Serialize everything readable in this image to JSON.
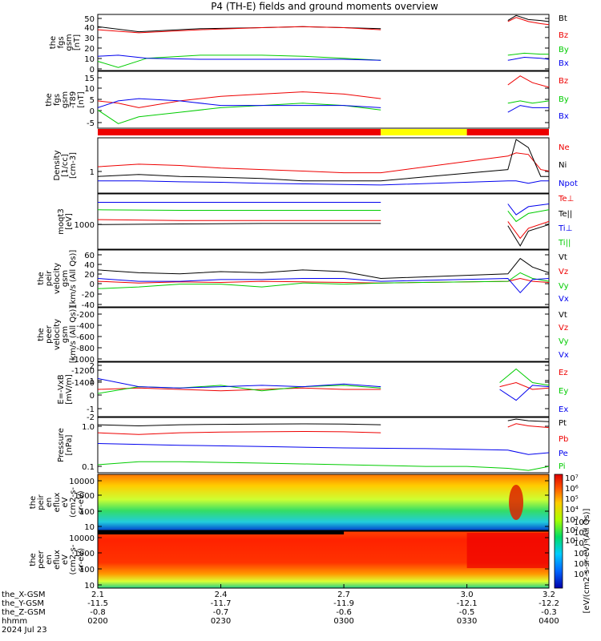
{
  "title": "P4 (TH-E) fields and ground moments overview",
  "colors": {
    "black": "#000000",
    "red": "#ee0000",
    "green": "#00cc00",
    "blue": "#0000ee",
    "yellow": "#ffff00"
  },
  "chart_data": [
    {
      "type": "line",
      "panel": "fgs_gsm",
      "ylabel": [
        "the",
        "fgs",
        "gsm",
        "[nT]"
      ],
      "ylim": [
        -5,
        50
      ],
      "yticks": [
        "50",
        "40",
        "30",
        "20",
        "10",
        "0"
      ],
      "legend": [
        "Bt",
        "Bz",
        "By",
        "Bx"
      ],
      "gap": [
        2.79,
        3.1
      ],
      "series": [
        {
          "name": "Bt",
          "color": "#000000",
          "x": [
            2.1,
            2.2,
            2.35,
            2.5,
            2.6,
            2.7,
            2.79,
            3.1,
            3.12,
            3.15,
            3.18,
            3.2
          ],
          "values": [
            38,
            33,
            36,
            37,
            38,
            37,
            36,
            44,
            49,
            45,
            44,
            43
          ]
        },
        {
          "name": "Bz",
          "color": "#ee0000",
          "x": [
            2.1,
            2.2,
            2.35,
            2.5,
            2.6,
            2.7,
            2.79,
            3.1,
            3.12,
            3.15,
            3.18,
            3.2
          ],
          "values": [
            35,
            32,
            35,
            37,
            38,
            37,
            35,
            43,
            47,
            43,
            41,
            40
          ]
        },
        {
          "name": "By",
          "color": "#00cc00",
          "x": [
            2.1,
            2.15,
            2.22,
            2.35,
            2.5,
            2.6,
            2.7,
            2.79,
            3.1,
            3.14,
            3.18,
            3.2
          ],
          "values": [
            4,
            -2,
            7,
            10,
            10,
            9,
            7,
            5,
            10,
            12,
            11,
            11
          ]
        },
        {
          "name": "Bx",
          "color": "#0000ee",
          "x": [
            2.1,
            2.15,
            2.22,
            2.35,
            2.5,
            2.6,
            2.7,
            2.79,
            3.1,
            3.14,
            3.18,
            3.2
          ],
          "values": [
            9,
            10,
            7,
            6,
            6,
            6,
            6,
            5,
            5,
            8,
            7,
            6
          ]
        }
      ]
    },
    {
      "type": "line",
      "panel": "fgs_gsm_t89",
      "ylabel": [
        "the",
        "fgs",
        "gsm",
        "-T89",
        "[nT]"
      ],
      "ylim": [
        -8,
        17
      ],
      "yticks": [
        "15",
        "10",
        "5",
        "0",
        "-5"
      ],
      "legend": [
        "Bz",
        "By",
        "Bx"
      ],
      "gap": [
        2.79,
        3.1
      ],
      "series": [
        {
          "name": "Bz",
          "color": "#ee0000",
          "x": [
            2.1,
            2.15,
            2.2,
            2.3,
            2.4,
            2.5,
            2.6,
            2.7,
            2.79,
            3.1,
            3.13,
            3.16,
            3.2
          ],
          "values": [
            4,
            3,
            1,
            4,
            6,
            7,
            8,
            7,
            5,
            11,
            15,
            12,
            10
          ]
        },
        {
          "name": "By",
          "color": "#00cc00",
          "x": [
            2.1,
            2.15,
            2.2,
            2.3,
            2.4,
            2.5,
            2.6,
            2.7,
            2.79,
            3.1,
            3.13,
            3.16,
            3.2
          ],
          "values": [
            0,
            -6,
            -3,
            -1,
            1,
            2,
            3,
            2,
            0,
            3,
            4,
            3,
            4
          ]
        },
        {
          "name": "Bx",
          "color": "#0000ee",
          "x": [
            2.1,
            2.15,
            2.2,
            2.3,
            2.4,
            2.5,
            2.6,
            2.7,
            2.79,
            3.1,
            3.13,
            3.16,
            3.2
          ],
          "values": [
            1,
            4,
            5,
            4,
            2,
            2,
            2,
            2,
            1,
            -1,
            2,
            1,
            1
          ]
        }
      ]
    },
    {
      "type": "bar",
      "panel": "mode_bar",
      "segments": [
        {
          "from": 2.1,
          "to": 2.79,
          "color": "#ee0000"
        },
        {
          "from": 2.79,
          "to": 3.0,
          "color": "#ffff00"
        },
        {
          "from": 3.0,
          "to": 3.2,
          "color": "#ee0000"
        }
      ]
    },
    {
      "type": "line",
      "panel": "density",
      "log": true,
      "ylabel": [
        "Density",
        "[1/cc]",
        "[cm-3]"
      ],
      "ylim": [
        0.3,
        3
      ],
      "yticks": [
        "1"
      ],
      "legend": [
        "Ne",
        "Ni",
        "Npot"
      ],
      "series": [
        {
          "name": "Ne",
          "color": "#ee0000",
          "x": [
            2.1,
            2.2,
            2.3,
            2.4,
            2.5,
            2.6,
            2.7,
            2.79,
            3.1,
            3.12,
            3.15,
            3.18,
            3.2
          ],
          "values": [
            0.9,
            1.0,
            0.95,
            0.85,
            0.8,
            0.75,
            0.7,
            0.7,
            1.4,
            1.6,
            1.5,
            0.8,
            0.75
          ]
        },
        {
          "name": "Ni",
          "color": "#000000",
          "x": [
            2.1,
            2.2,
            2.3,
            2.4,
            2.5,
            2.6,
            2.7,
            2.79,
            3.1,
            3.12,
            3.15,
            3.18,
            3.2
          ],
          "values": [
            0.6,
            0.65,
            0.6,
            0.58,
            0.55,
            0.5,
            0.5,
            0.5,
            0.8,
            2.8,
            2.0,
            0.6,
            0.6
          ]
        },
        {
          "name": "Npot",
          "color": "#0000ee",
          "x": [
            2.1,
            2.2,
            2.3,
            2.4,
            2.5,
            2.6,
            2.7,
            2.79,
            3.1,
            3.12,
            3.15,
            3.18,
            3.2
          ],
          "values": [
            0.5,
            0.5,
            0.48,
            0.47,
            0.45,
            0.44,
            0.43,
            0.42,
            0.5,
            0.5,
            0.45,
            0.5,
            0.5
          ]
        }
      ]
    },
    {
      "type": "line",
      "panel": "temperature",
      "log": true,
      "ylabel": [
        "moqt3",
        "[eV]"
      ],
      "ylim": [
        300,
        4000
      ],
      "yticks": [
        "1000"
      ],
      "legend": [
        "Te⊥",
        "Te||",
        "Ti⊥",
        "Ti||"
      ],
      "gap": [
        2.79,
        3.1
      ],
      "series": [
        {
          "name": "Te⊥",
          "color": "#ee0000",
          "x": [
            2.1,
            2.3,
            2.5,
            2.79,
            3.1,
            3.13,
            3.15,
            3.2
          ],
          "values": [
            1200,
            1150,
            1150,
            1150,
            1100,
            500,
            800,
            1100
          ]
        },
        {
          "name": "Te||",
          "color": "#000000",
          "x": [
            2.1,
            2.3,
            2.5,
            2.79,
            3.1,
            3.13,
            3.15,
            3.2
          ],
          "values": [
            950,
            980,
            1000,
            1000,
            900,
            350,
            700,
            950
          ]
        },
        {
          "name": "Ti⊥",
          "color": "#0000ee",
          "x": [
            2.1,
            2.3,
            2.5,
            2.79,
            3.1,
            3.12,
            3.15,
            3.2
          ],
          "values": [
            2700,
            2700,
            2700,
            2700,
            2500,
            1500,
            2200,
            2500
          ]
        },
        {
          "name": "Ti||",
          "color": "#00cc00",
          "x": [
            2.1,
            2.3,
            2.5,
            2.79,
            3.1,
            3.12,
            3.15,
            3.2
          ],
          "values": [
            1900,
            1850,
            1850,
            1850,
            1800,
            1100,
            1600,
            1900
          ]
        }
      ]
    },
    {
      "type": "line",
      "panel": "peir_velocity",
      "ylabel": [
        "the",
        "peir",
        "velocity",
        "gsm",
        "[km/s (All Qs)]"
      ],
      "ylim": [
        -40,
        60
      ],
      "yticks": [
        "60",
        "40",
        "20",
        "0",
        "-20",
        "-40"
      ],
      "legend": [
        "Vt",
        "Vz",
        "Vy",
        "Vx"
      ],
      "series": [
        {
          "name": "Vt",
          "color": "#000000",
          "x": [
            2.1,
            2.2,
            2.3,
            2.4,
            2.5,
            2.6,
            2.7,
            2.79,
            3.1,
            3.13,
            3.16,
            3.2
          ],
          "values": [
            25,
            20,
            18,
            22,
            20,
            25,
            22,
            10,
            18,
            45,
            30,
            20
          ]
        },
        {
          "name": "Vz",
          "color": "#ee0000",
          "x": [
            2.1,
            2.2,
            2.3,
            2.4,
            2.5,
            2.6,
            2.7,
            2.79,
            3.1,
            3.13,
            3.16,
            3.2
          ],
          "values": [
            5,
            2,
            4,
            3,
            5,
            4,
            3,
            2,
            5,
            10,
            5,
            3
          ]
        },
        {
          "name": "Vy",
          "color": "#00cc00",
          "x": [
            2.1,
            2.2,
            2.3,
            2.4,
            2.5,
            2.6,
            2.7,
            2.79,
            3.1,
            3.13,
            3.16,
            3.2
          ],
          "values": [
            -8,
            -5,
            0,
            0,
            -5,
            2,
            0,
            2,
            5,
            20,
            10,
            5
          ]
        },
        {
          "name": "Vx",
          "color": "#0000ee",
          "x": [
            2.1,
            2.2,
            2.3,
            2.4,
            2.5,
            2.6,
            2.7,
            2.79,
            3.1,
            3.13,
            3.16,
            3.2
          ],
          "values": [
            10,
            5,
            5,
            8,
            8,
            10,
            10,
            5,
            10,
            -15,
            8,
            10
          ]
        }
      ]
    },
    {
      "type": "line",
      "panel": "peer_velocity",
      "ylabel": [
        "the",
        "peer",
        "velocity",
        "gsm",
        "[km/s (All Qs)]"
      ],
      "ylim": [
        -1400,
        0
      ],
      "yticks": [
        "-200",
        "-400",
        "-600",
        "-800",
        "-1000",
        "-1200",
        "-1400"
      ],
      "legend": [
        "Vt",
        "Vz",
        "Vy",
        "Vx"
      ],
      "series": []
    },
    {
      "type": "line",
      "panel": "efield",
      "ylabel": [
        "E=-VxB",
        "[mV/m]"
      ],
      "ylim": [
        -2,
        2
      ],
      "yticks": [
        "2",
        "1",
        "0",
        "-1",
        "-2"
      ],
      "legend": [
        "Ez",
        "Ey",
        "Ex"
      ],
      "gap": [
        2.79,
        3.08
      ],
      "series": [
        {
          "name": "Ez",
          "color": "#ee0000",
          "x": [
            2.1,
            2.2,
            2.3,
            2.4,
            2.5,
            2.6,
            2.7,
            2.79,
            3.08,
            3.12,
            3.16,
            3.2
          ],
          "values": [
            0.0,
            0.1,
            0.0,
            -0.1,
            0.0,
            0.1,
            0.0,
            0.0,
            0.2,
            0.5,
            0.0,
            0.1
          ]
        },
        {
          "name": "Ey",
          "color": "#00cc00",
          "x": [
            2.1,
            2.2,
            2.3,
            2.4,
            2.5,
            2.6,
            2.7,
            2.79,
            3.08,
            3.12,
            3.16,
            3.2
          ],
          "values": [
            -0.3,
            0.2,
            0.1,
            0.3,
            -0.1,
            0.2,
            0.3,
            0.1,
            0.5,
            1.5,
            0.5,
            0.3
          ]
        },
        {
          "name": "Ex",
          "color": "#0000ee",
          "x": [
            2.1,
            2.2,
            2.3,
            2.4,
            2.5,
            2.6,
            2.7,
            2.79,
            3.08,
            3.12,
            3.16,
            3.2
          ],
          "values": [
            0.8,
            0.2,
            0.1,
            0.2,
            0.3,
            0.2,
            0.4,
            0.2,
            0.0,
            -0.8,
            0.3,
            0.2
          ]
        }
      ]
    },
    {
      "type": "line",
      "panel": "pressure",
      "log": true,
      "ylabel": [
        "Pressure",
        "[nPa]"
      ],
      "ylim": [
        0.08,
        1.3
      ],
      "yticks": [
        "1.0",
        "0.1"
      ],
      "legend": [
        "Pt",
        "Pb",
        "Pe",
        "Pi"
      ],
      "gap": [
        2.79,
        3.1
      ],
      "series": [
        {
          "name": "Pt",
          "color": "#000000",
          "x": [
            2.1,
            2.2,
            2.3,
            2.4,
            2.5,
            2.6,
            2.7,
            2.79,
            3.1,
            3.12,
            3.15,
            3.2
          ],
          "values": [
            0.9,
            0.85,
            0.9,
            0.92,
            0.93,
            0.94,
            0.93,
            0.9,
            1.1,
            1.2,
            1.1,
            1.05
          ]
        },
        {
          "name": "Pb",
          "color": "#ee0000",
          "x": [
            2.1,
            2.2,
            2.3,
            2.4,
            2.5,
            2.6,
            2.7,
            2.79,
            3.1,
            3.12,
            3.15,
            3.2
          ],
          "values": [
            0.6,
            0.55,
            0.6,
            0.62,
            0.63,
            0.64,
            0.63,
            0.6,
            0.8,
            0.95,
            0.85,
            0.78
          ]
        },
        {
          "name": "Pe",
          "color": "#0000ee",
          "x": [
            2.1,
            2.3,
            2.5,
            2.7,
            2.9,
            3.0,
            3.1,
            3.15,
            3.2
          ],
          "values": [
            0.35,
            0.32,
            0.3,
            0.28,
            0.27,
            0.26,
            0.25,
            0.2,
            0.22
          ]
        },
        {
          "name": "Pi",
          "color": "#00cc00",
          "x": [
            2.1,
            2.2,
            2.3,
            2.5,
            2.7,
            2.9,
            3.0,
            3.1,
            3.15,
            3.2
          ],
          "values": [
            0.12,
            0.14,
            0.14,
            0.13,
            0.12,
            0.11,
            0.11,
            0.1,
            0.09,
            0.11
          ]
        }
      ]
    },
    {
      "type": "heatmap",
      "panel": "peir_eflux",
      "ylabel": [
        "the",
        "peir",
        "en",
        "eflux",
        "eV",
        "(cm2-s-",
        "sr-eV)"
      ],
      "ylim": [
        8,
        20000
      ],
      "yticks": [
        "10000",
        "1000",
        "100",
        "10"
      ]
    },
    {
      "type": "heatmap",
      "panel": "peer_eflux",
      "ylabel": [
        "the",
        "peer",
        "en",
        "eflux",
        "eV",
        "(cm2-s-",
        "sr-eV)"
      ],
      "ylim": [
        8,
        20000
      ],
      "yticks": [
        "10000",
        "1000",
        "100",
        "10"
      ]
    }
  ],
  "colorbar": {
    "ticks_top": [
      "10⁷",
      "10⁶",
      "10⁵",
      "10⁴",
      "10³",
      "10²",
      "10¹"
    ],
    "ticks_bottom": [
      "10⁸",
      "10⁷",
      "10⁶",
      "10⁵",
      "10⁴",
      "10³"
    ],
    "label": "[eV/(cm2-s-sr-eV) (All Qs)]"
  },
  "time_axis": {
    "x": [
      2.1,
      2.4,
      2.7,
      3.0,
      3.2
    ],
    "ticks": [
      "2.1",
      "2.4",
      "2.7",
      "3.0",
      "3.2"
    ],
    "xlim": [
      2.1,
      3.2
    ],
    "rows": [
      {
        "label": "the_X-GSM",
        "values": [
          "2.1",
          "2.4",
          "2.7",
          "3.0",
          "3.2"
        ]
      },
      {
        "label": "the_Y-GSM",
        "values": [
          "-11.5",
          "-11.7",
          "-11.9",
          "-12.1",
          "-12.2"
        ]
      },
      {
        "label": "the_Z-GSM",
        "values": [
          "-0.8",
          "-0.7",
          "-0.6",
          "-0.5",
          "-0.3"
        ]
      },
      {
        "label": "hhmm",
        "values": [
          "0200",
          "0230",
          "0300",
          "0330",
          "0400"
        ]
      }
    ],
    "date": "2024 Jul 23"
  }
}
